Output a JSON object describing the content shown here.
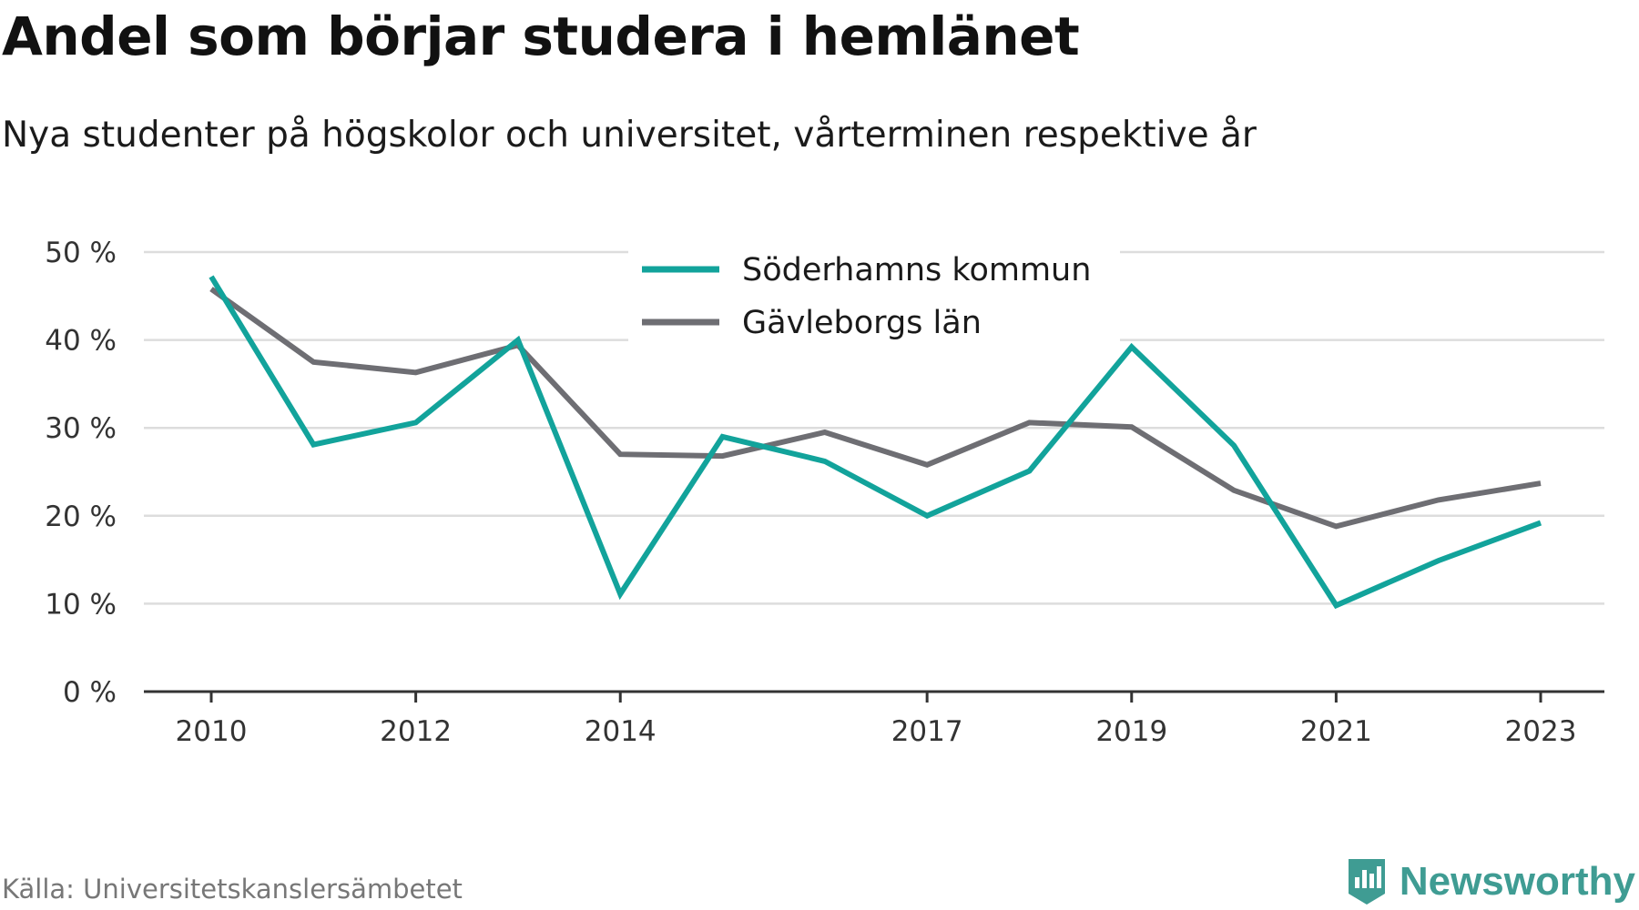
{
  "title": "Andel som börjar studera i hemlänet",
  "subtitle": "Nya studenter på högskolor och universitet, vårterminen respektive år",
  "source": "Källa: Universitetskanslersämbetet",
  "brand": "Newsworthy",
  "colors": {
    "series_1": "#12a39b",
    "series_2": "#6e6e73",
    "grid": "#dddddd",
    "brand": "#3f9c93"
  },
  "chart_data": {
    "type": "line",
    "x": [
      2010,
      2011,
      2012,
      2013,
      2014,
      2015,
      2016,
      2017,
      2018,
      2019,
      2020,
      2021,
      2022,
      2023
    ],
    "xticks": [
      2010,
      2012,
      2014,
      2017,
      2019,
      2021,
      2023
    ],
    "xtick_labels": [
      "2010",
      "2012",
      "2014",
      "2017",
      "2019",
      "2021",
      "2023"
    ],
    "yticks": [
      0,
      10,
      20,
      30,
      40,
      50
    ],
    "ytick_labels": [
      "0 %",
      "10 %",
      "20 %",
      "30 %",
      "40 %",
      "50 %"
    ],
    "ylim": [
      0,
      50
    ],
    "grid": true,
    "legend_position": "top-center",
    "series": [
      {
        "name": "Söderhamns kommun",
        "values": [
          47.2,
          28.1,
          30.6,
          40.0,
          11.1,
          29.0,
          26.2,
          20.0,
          25.1,
          39.2,
          28.0,
          9.8,
          14.9,
          19.2
        ]
      },
      {
        "name": "Gävleborgs län",
        "values": [
          45.8,
          37.5,
          36.3,
          39.4,
          27.0,
          26.8,
          29.5,
          25.8,
          30.6,
          30.1,
          22.9,
          18.8,
          21.8,
          23.7
        ]
      }
    ]
  }
}
